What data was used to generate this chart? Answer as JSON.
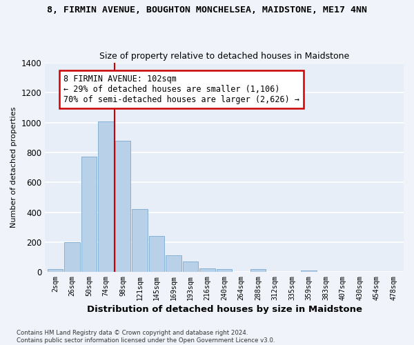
{
  "title": "8, FIRMIN AVENUE, BOUGHTON MONCHELSEA, MAIDSTONE, ME17 4NN",
  "subtitle": "Size of property relative to detached houses in Maidstone",
  "xlabel": "Distribution of detached houses by size in Maidstone",
  "ylabel": "Number of detached properties",
  "bar_color": "#b8d0e8",
  "bar_edge_color": "#7aaad0",
  "bg_color": "#e8eef8",
  "fig_color": "#f0f4fa",
  "grid_color": "#ffffff",
  "categories": [
    "2sqm",
    "26sqm",
    "50sqm",
    "74sqm",
    "98sqm",
    "121sqm",
    "145sqm",
    "169sqm",
    "193sqm",
    "216sqm",
    "240sqm",
    "264sqm",
    "288sqm",
    "312sqm",
    "335sqm",
    "359sqm",
    "383sqm",
    "407sqm",
    "430sqm",
    "454sqm",
    "478sqm"
  ],
  "values": [
    20,
    200,
    770,
    1010,
    880,
    420,
    240,
    110,
    70,
    25,
    20,
    0,
    20,
    0,
    0,
    10,
    0,
    0,
    0,
    0,
    0
  ],
  "ylim": [
    0,
    1400
  ],
  "yticks": [
    0,
    200,
    400,
    600,
    800,
    1000,
    1200,
    1400
  ],
  "vline_index": 4,
  "vline_color": "#cc0000",
  "ann_line1": "8 FIRMIN AVENUE: 102sqm",
  "ann_line2": "← 29% of detached houses are smaller (1,106)",
  "ann_line3": "70% of semi-detached houses are larger (2,626) →",
  "annotation_box_color": "#ffffff",
  "annotation_box_edge": "#cc0000",
  "footnote1": "Contains HM Land Registry data © Crown copyright and database right 2024.",
  "footnote2": "Contains public sector information licensed under the Open Government Licence v3.0."
}
